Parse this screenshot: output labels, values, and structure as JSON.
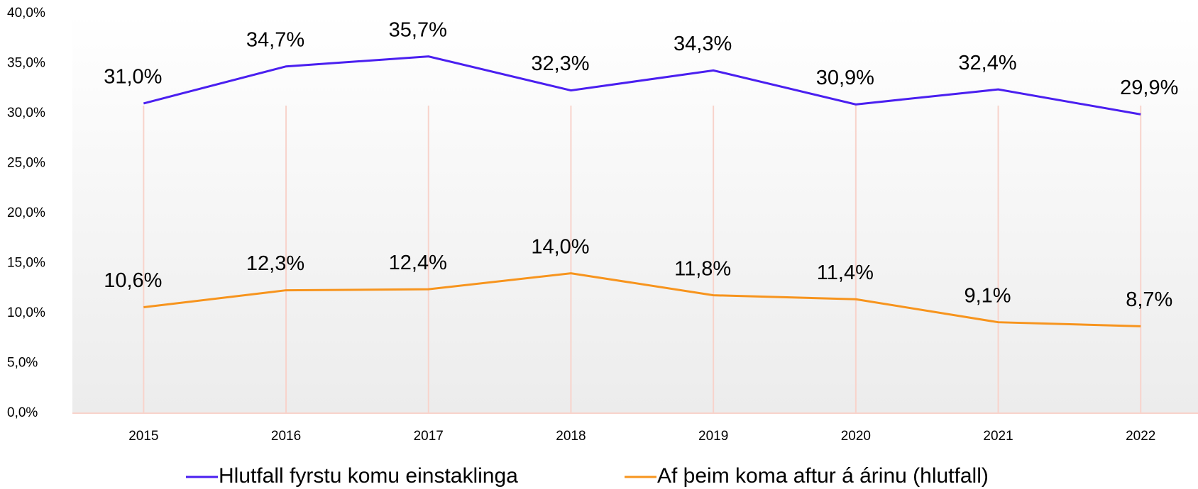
{
  "chart_data": {
    "type": "line",
    "categories": [
      "2015",
      "2016",
      "2017",
      "2018",
      "2019",
      "2020",
      "2021",
      "2022"
    ],
    "series": [
      {
        "name": "Hlutfall fyrstu komu einstaklinga",
        "color": "#4a1ff0",
        "values": [
          31.0,
          34.7,
          35.7,
          32.3,
          34.3,
          30.9,
          32.4,
          29.9
        ],
        "value_labels": [
          "31,0%",
          "34,7%",
          "35,7%",
          "32,3%",
          "34,3%",
          "30,9%",
          "32,4%",
          "29,9%"
        ]
      },
      {
        "name": "Af þeim koma aftur á árinu (hlutfall)",
        "color": "#f7941d",
        "values": [
          10.6,
          12.3,
          12.4,
          14.0,
          11.8,
          11.4,
          9.1,
          8.7
        ],
        "value_labels": [
          "10,6%",
          "12,3%",
          "12,4%",
          "14,0%",
          "11,8%",
          "11,4%",
          "9,1%",
          "8,7%"
        ]
      }
    ],
    "ylim": [
      0,
      40
    ],
    "yticks": [
      {
        "value": 0,
        "label": "0,0%"
      },
      {
        "value": 5,
        "label": "5,0%"
      },
      {
        "value": 10,
        "label": "10,0%"
      },
      {
        "value": 15,
        "label": "15,0%"
      },
      {
        "value": 20,
        "label": "20,0%"
      },
      {
        "value": 25,
        "label": "25,0%"
      },
      {
        "value": 30,
        "label": "30,0%"
      },
      {
        "value": 35,
        "label": "35,0%"
      },
      {
        "value": 40,
        "label": "40,0%"
      }
    ],
    "legend": "bottom"
  }
}
